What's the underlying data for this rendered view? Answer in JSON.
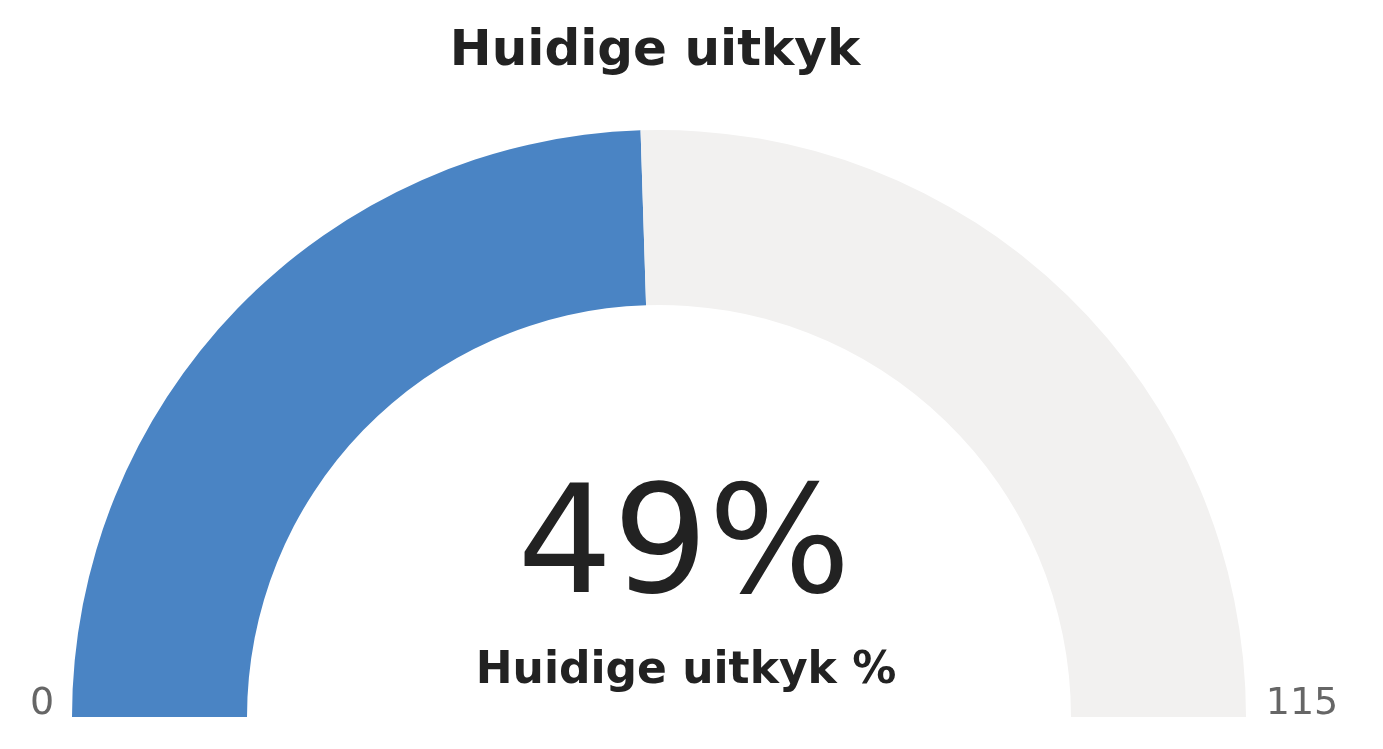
{
  "chart_data": {
    "type": "donut",
    "title": "Huidige uitkyk",
    "categories": [
      null,
      null
    ],
    "values": [
      49,
      51
    ],
    "colors": [
      "#4a84c4",
      "#f2f1f0"
    ],
    "value_labels": [
      "49%",
      null
    ],
    "annotations": [
      "Huidige uitkyk %",
      "0",
      "115"
    ]
  }
}
